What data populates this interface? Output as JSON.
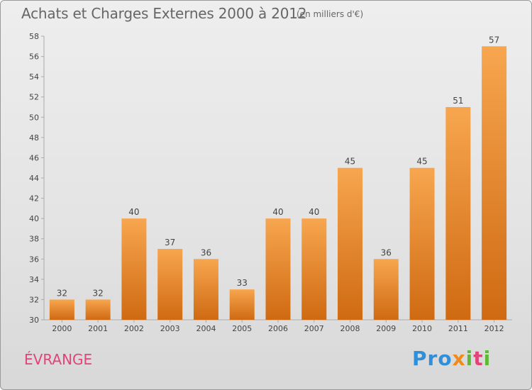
{
  "title": "Achats et Charges Externes 2000 à 2012",
  "subtitle": "(en milliers d'€)",
  "commune": "ÉVRANGE",
  "brand": {
    "p1": "Pro",
    "p2": "x",
    "p3": "i",
    "p4": "t",
    "p5": "i"
  },
  "colors": {
    "bar_top": "#f7a64f",
    "bar_bottom": "#cf6a12",
    "commune": "#e0447a"
  },
  "chart_data": {
    "type": "bar",
    "categories": [
      "2000",
      "2001",
      "2002",
      "2003",
      "2004",
      "2005",
      "2006",
      "2007",
      "2008",
      "2009",
      "2010",
      "2011",
      "2012"
    ],
    "values": [
      32,
      32,
      40,
      37,
      36,
      33,
      40,
      40,
      45,
      36,
      45,
      51,
      57
    ],
    "ylim": [
      30,
      58
    ],
    "yticks": [
      30,
      32,
      34,
      36,
      38,
      40,
      42,
      44,
      46,
      48,
      50,
      52,
      54,
      56,
      58
    ],
    "grid": false,
    "data_labels": true
  }
}
